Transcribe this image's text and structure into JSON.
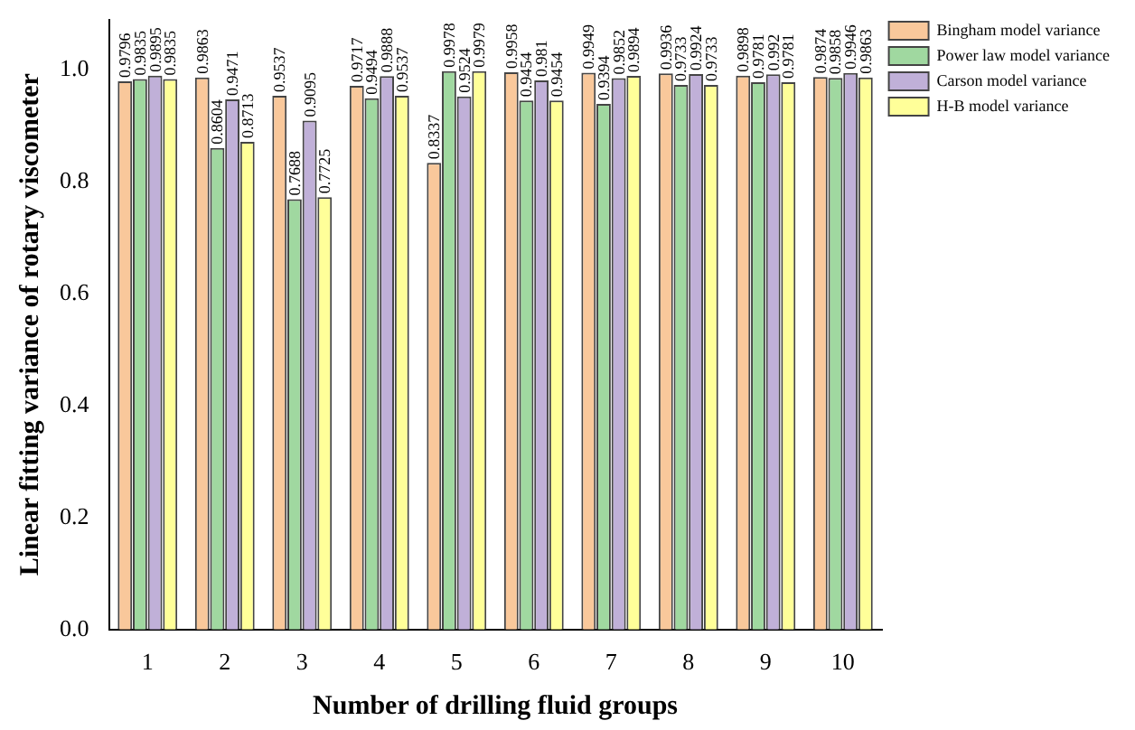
{
  "chart_data": {
    "type": "bar",
    "xlabel": "Number of drilling fluid groups",
    "ylabel": "Linear fitting variance of rotary viscometer",
    "categories": [
      "1",
      "2",
      "3",
      "4",
      "5",
      "6",
      "7",
      "8",
      "9",
      "10"
    ],
    "series": [
      {
        "name": "Bingham model variance",
        "color": "#f9c89b",
        "values": [
          0.9796,
          0.9863,
          0.9537,
          0.9717,
          0.8337,
          0.9958,
          0.9949,
          0.9936,
          0.9898,
          0.9874
        ]
      },
      {
        "name": "Power law model variance",
        "color": "#a0d8a0",
        "values": [
          0.9835,
          0.8604,
          0.7688,
          0.9494,
          0.9978,
          0.9454,
          0.9394,
          0.9733,
          0.9781,
          0.9858
        ]
      },
      {
        "name": "Carson model variance",
        "color": "#c0b0d8",
        "values": [
          0.9895,
          0.9471,
          0.9095,
          0.9888,
          0.9524,
          0.981,
          0.9852,
          0.9924,
          0.992,
          0.9946
        ]
      },
      {
        "name": "H-B model variance",
        "color": "#ffff99",
        "values": [
          0.9835,
          0.8713,
          0.7725,
          0.9537,
          0.9979,
          0.9454,
          0.9894,
          0.9733,
          0.9781,
          0.9863
        ]
      }
    ],
    "ylim": [
      0,
      1.09
    ],
    "yticks": [
      {
        "value": 0,
        "label": "0.0"
      },
      {
        "value": 0.2,
        "label": "0.2"
      },
      {
        "value": 0.4,
        "label": "0.4"
      },
      {
        "value": 0.6,
        "label": "0.6"
      },
      {
        "value": 0.8,
        "label": "0.8"
      },
      {
        "value": 1,
        "label": "1.0"
      }
    ],
    "grid": false,
    "legend": "top right",
    "data_labels": true
  }
}
